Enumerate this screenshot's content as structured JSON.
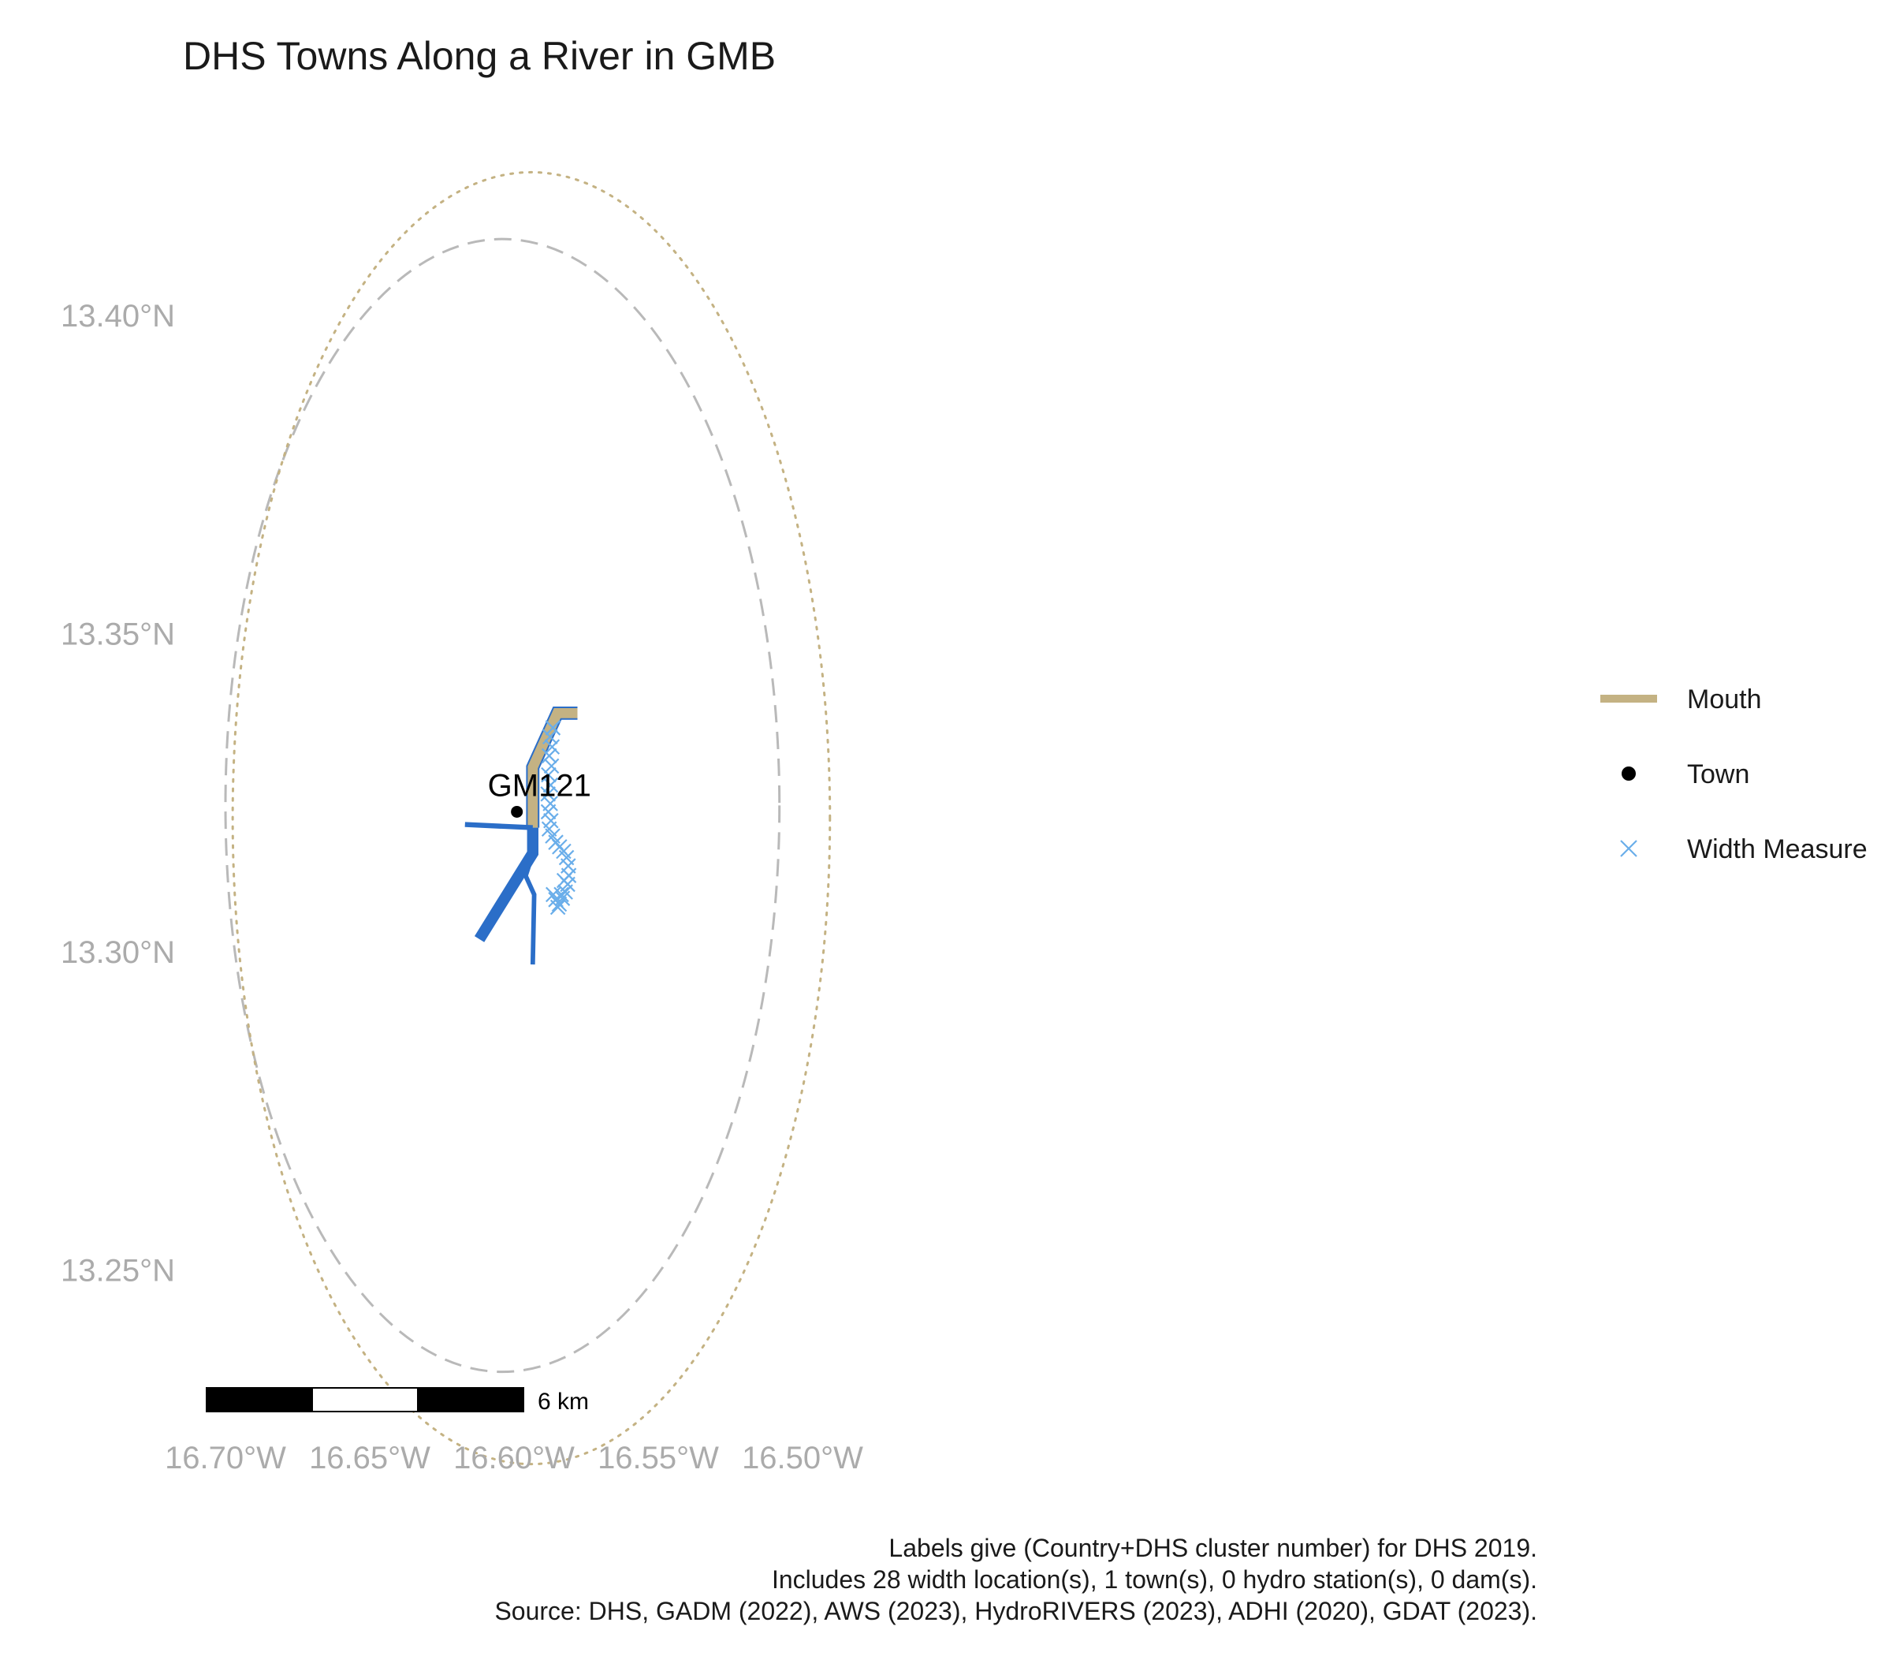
{
  "title": "DHS Towns Along a River in GMB",
  "chart_data": {
    "type": "map",
    "xlim": [
      -16.7,
      -16.5
    ],
    "ylim": [
      13.25,
      13.4
    ],
    "x_ticks": [
      {
        "value": -16.7,
        "label": "16.70°W"
      },
      {
        "value": -16.65,
        "label": "16.65°W"
      },
      {
        "value": -16.6,
        "label": "16.60°W"
      },
      {
        "value": -16.55,
        "label": "16.55°W"
      },
      {
        "value": -16.5,
        "label": "16.50°W"
      }
    ],
    "y_ticks": [
      {
        "value": 13.4,
        "label": "13.40°N"
      },
      {
        "value": 13.35,
        "label": "13.35°N"
      },
      {
        "value": 13.3,
        "label": "13.30°N"
      },
      {
        "value": 13.25,
        "label": "13.25°N"
      }
    ],
    "grid": false,
    "legend_position": "right",
    "legend": [
      {
        "key": "mouth",
        "label": "Mouth",
        "symbol": "line",
        "color": "#c4b283"
      },
      {
        "key": "town",
        "label": "Town",
        "symbol": "dot",
        "color": "#000000"
      },
      {
        "key": "width",
        "label": "Width Measure",
        "symbol": "cross",
        "color": "#6aaeea"
      }
    ],
    "towns": [
      {
        "label": "GM121",
        "lon": -16.599,
        "lat": 13.322
      }
    ],
    "rivers": [
      {
        "kind": "mouth",
        "width": 4,
        "points": [
          [
            -16.5935,
            13.3195
          ],
          [
            -16.5935,
            13.329
          ],
          [
            -16.585,
            13.3375
          ],
          [
            -16.578,
            13.3375
          ]
        ]
      },
      {
        "kind": "river",
        "width": 2,
        "points": [
          [
            -16.617,
            13.32
          ],
          [
            -16.5935,
            13.3195
          ]
        ]
      },
      {
        "kind": "river",
        "width": 4.5,
        "points": [
          [
            -16.5935,
            13.3195
          ],
          [
            -16.5935,
            13.3155
          ],
          [
            -16.612,
            13.302
          ]
        ]
      },
      {
        "kind": "river",
        "width": 2,
        "points": [
          [
            -16.5935,
            13.3155
          ],
          [
            -16.596,
            13.312
          ]
        ]
      },
      {
        "kind": "river",
        "width": 1.8,
        "points": [
          [
            -16.596,
            13.312
          ],
          [
            -16.593,
            13.309
          ],
          [
            -16.5935,
            13.298
          ]
        ]
      }
    ],
    "width_measures": [
      [
        -16.5865,
        13.3352
      ],
      [
        -16.5875,
        13.3338
      ],
      [
        -16.5868,
        13.3322
      ],
      [
        -16.5878,
        13.3308
      ],
      [
        -16.587,
        13.3292
      ],
      [
        -16.588,
        13.3278
      ],
      [
        -16.5873,
        13.3262
      ],
      [
        -16.5882,
        13.3248
      ],
      [
        -16.5874,
        13.3233
      ],
      [
        -16.5881,
        13.322
      ],
      [
        -16.5872,
        13.3206
      ],
      [
        -16.5878,
        13.3193
      ],
      [
        -16.5866,
        13.3182
      ],
      [
        -16.5855,
        13.3172
      ],
      [
        -16.5842,
        13.3165
      ],
      [
        -16.5828,
        13.3158
      ],
      [
        -16.5818,
        13.3148
      ],
      [
        -16.5812,
        13.3135
      ],
      [
        -16.581,
        13.312
      ],
      [
        -16.5814,
        13.3106
      ],
      [
        -16.5822,
        13.3094
      ],
      [
        -16.5832,
        13.3084
      ],
      [
        -16.5843,
        13.3075
      ],
      [
        -16.5855,
        13.3082
      ],
      [
        -16.5864,
        13.309
      ],
      [
        -16.5848,
        13.307
      ],
      [
        -16.5836,
        13.309
      ],
      [
        -16.5826,
        13.3112
      ]
    ],
    "buffers": [
      {
        "style": "dashed",
        "color": "#b9b9b9",
        "center": [
          -16.604,
          13.323
        ],
        "rx_deg": 0.096,
        "ry_deg": 0.089
      },
      {
        "style": "dotted",
        "color": "#c4b283",
        "center": [
          -16.594,
          13.321
        ],
        "rx_deg": 0.1035,
        "ry_deg": 0.1015
      }
    ],
    "scale_bar": {
      "label": "6 km",
      "segments": 3
    },
    "caption": [
      "Labels give (Country+DHS cluster number) for DHS 2019.",
      "Includes 28 width location(s), 1 town(s), 0 hydro station(s), 0 dam(s).",
      "Source: DHS, GADM (2022), AWS (2023), HydroRIVERS (2023), ADHI (2020), GDAT (2023)."
    ]
  },
  "colors": {
    "river": "#2b6ec8",
    "mouth": "#c4b283",
    "town": "#000000",
    "width_measure": "#6aaeea",
    "buffer_dashed": "#b9b9b9",
    "buffer_dotted": "#c4b283",
    "tick_text": "#ababab"
  }
}
